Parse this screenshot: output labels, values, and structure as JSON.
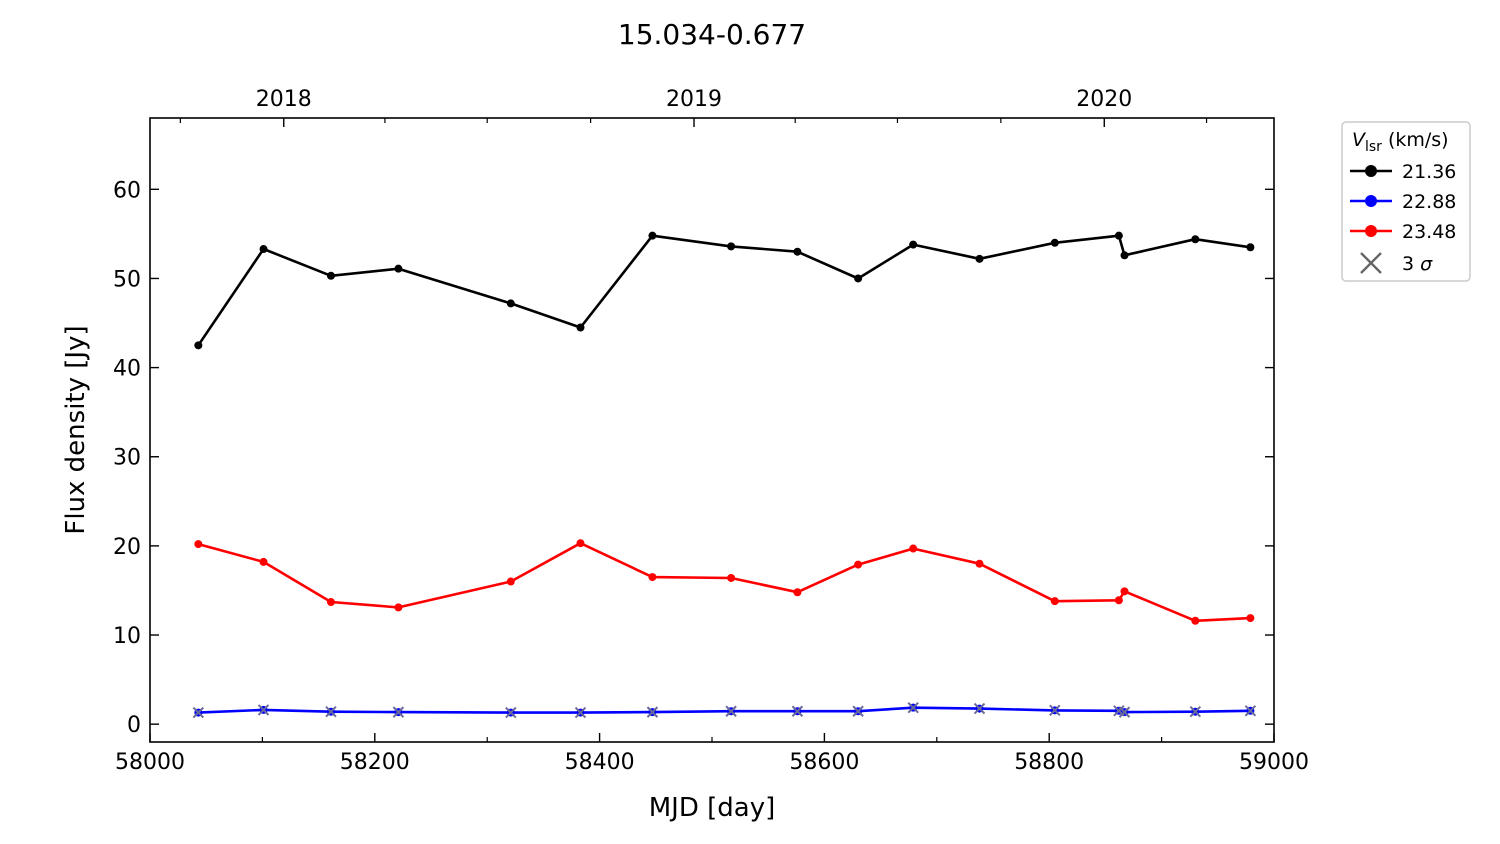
{
  "chart_data": {
    "type": "line",
    "title": "15.034-0.677",
    "xlabel": "MJD [day]",
    "ylabel": "Flux density [Jy]",
    "xlim": [
      58000,
      59000
    ],
    "ylim": [
      -2,
      68
    ],
    "xticks": [
      58000,
      58200,
      58400,
      58600,
      58800,
      59000
    ],
    "yticks": [
      0,
      10,
      20,
      30,
      40,
      50,
      60
    ],
    "top_axis": {
      "ticks": [
        {
          "label": "2018",
          "mjd": 58119
        },
        {
          "label": "2019",
          "mjd": 58484
        },
        {
          "label": "2020",
          "mjd": 58849
        }
      ],
      "minor_mjd": [
        58027,
        58209,
        58300,
        58392,
        58574,
        58665,
        58757,
        58940
      ]
    },
    "legend": {
      "title_main": "V",
      "title_sub": "lsr",
      "title_unit": "(km/s)",
      "placement": "outside-top-right",
      "sigma_label": "3",
      "sigma_symbol": "σ"
    },
    "series": [
      {
        "name": "21.36",
        "color": "#000000",
        "x": [
          58043,
          58101,
          58161,
          58221,
          58321,
          58383,
          58447,
          58517,
          58576,
          58630,
          58679,
          58738,
          58805,
          58862,
          58867,
          58930,
          58979
        ],
        "y": [
          42.5,
          53.3,
          50.3,
          51.1,
          47.2,
          44.5,
          54.8,
          53.6,
          53.0,
          50.0,
          53.8,
          52.2,
          54.0,
          54.8,
          52.6,
          54.4,
          53.5
        ]
      },
      {
        "name": "22.88",
        "color": "#0000ff",
        "x": [
          58043,
          58101,
          58161,
          58221,
          58321,
          58383,
          58447,
          58517,
          58576,
          58630,
          58679,
          58738,
          58805,
          58862,
          58867,
          58930,
          58979
        ],
        "y": [
          1.3,
          1.6,
          1.4,
          1.35,
          1.3,
          1.3,
          1.35,
          1.45,
          1.45,
          1.45,
          1.85,
          1.75,
          1.55,
          1.5,
          1.35,
          1.4,
          1.5
        ],
        "sigma3": [
          1.3,
          1.6,
          1.4,
          1.35,
          1.3,
          1.3,
          1.35,
          1.45,
          1.45,
          1.45,
          1.85,
          1.75,
          1.55,
          1.5,
          1.35,
          1.4,
          1.5
        ]
      },
      {
        "name": "23.48",
        "color": "#ff0000",
        "x": [
          58043,
          58101,
          58161,
          58221,
          58321,
          58383,
          58447,
          58517,
          58576,
          58630,
          58679,
          58738,
          58805,
          58862,
          58867,
          58930,
          58979
        ],
        "y": [
          20.2,
          18.2,
          13.7,
          13.1,
          16.0,
          20.3,
          16.5,
          16.4,
          14.8,
          17.9,
          19.7,
          18.0,
          13.8,
          13.9,
          14.9,
          11.6,
          11.9
        ]
      }
    ],
    "grid": false
  }
}
